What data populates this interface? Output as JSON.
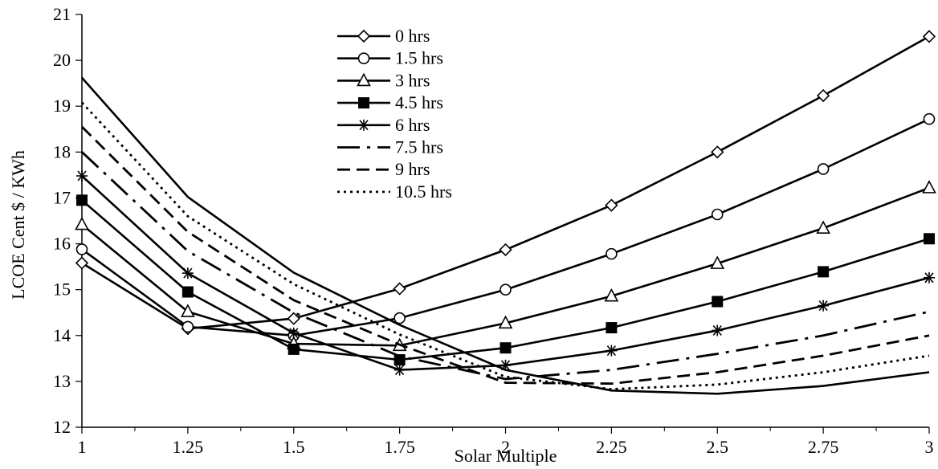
{
  "chart_data": {
    "type": "line",
    "title": "",
    "xlabel": "Solar Multiple",
    "ylabel": "LCOE Cent $ / KWh",
    "x": [
      1,
      1.25,
      1.5,
      1.75,
      2,
      2.25,
      2.5,
      2.75,
      3
    ],
    "x_tick_labels": [
      "1",
      "1.25",
      "1.5",
      "1.75",
      "2",
      "2.25",
      "2.5",
      "2.75",
      "3"
    ],
    "xlim": [
      1,
      3
    ],
    "ylim": [
      12,
      21
    ],
    "y_ticks": [
      12,
      13,
      14,
      15,
      16,
      17,
      18,
      19,
      20,
      21
    ],
    "grid": false,
    "legend_position": "top-center",
    "series": [
      {
        "name": "0 hrs",
        "marker": "diamond",
        "dash": "solid",
        "values": [
          15.58,
          14.15,
          14.37,
          15.02,
          15.87,
          16.84,
          18.0,
          19.23,
          20.52
        ]
      },
      {
        "name": "1.5 hrs",
        "marker": "circle",
        "dash": "solid",
        "values": [
          15.88,
          14.19,
          14.0,
          14.38,
          15.0,
          15.78,
          16.64,
          17.63,
          18.72
        ]
      },
      {
        "name": "3 hrs",
        "marker": "triangle",
        "dash": "solid",
        "values": [
          16.42,
          14.52,
          13.82,
          13.78,
          14.27,
          14.86,
          15.57,
          16.34,
          17.22
        ]
      },
      {
        "name": "4.5 hrs",
        "marker": "square",
        "dash": "solid",
        "values": [
          16.95,
          14.95,
          13.7,
          13.47,
          13.73,
          14.17,
          14.74,
          15.39,
          16.11
        ]
      },
      {
        "name": "6 hrs",
        "marker": "star",
        "dash": "solid",
        "values": [
          17.48,
          15.36,
          14.05,
          13.25,
          13.35,
          13.67,
          14.11,
          14.65,
          15.26
        ]
      },
      {
        "name": "7.5 hrs",
        "marker": "none",
        "dash": "dashdot",
        "values": [
          18.0,
          15.84,
          14.5,
          13.55,
          13.05,
          13.25,
          13.6,
          14.0,
          14.52
        ]
      },
      {
        "name": "9 hrs",
        "marker": "none",
        "dash": "dash",
        "values": [
          18.55,
          16.26,
          14.77,
          13.8,
          12.97,
          12.95,
          13.2,
          13.56,
          14.0
        ]
      },
      {
        "name": "10.5 hrs",
        "marker": "none",
        "dash": "dot",
        "values": [
          19.08,
          16.6,
          15.12,
          14.02,
          13.1,
          12.83,
          12.93,
          13.2,
          13.56
        ]
      },
      {
        "name": "",
        "marker": "none",
        "dash": "solid",
        "values": [
          19.62,
          17.02,
          15.37,
          14.23,
          13.25,
          12.8,
          12.73,
          12.9,
          13.2
        ]
      }
    ]
  }
}
